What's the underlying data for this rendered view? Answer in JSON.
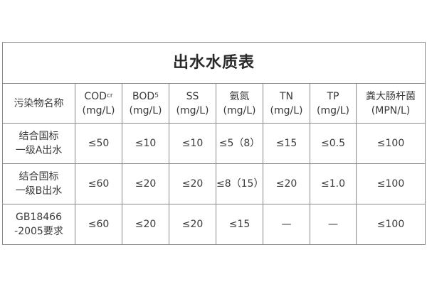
{
  "title": "出水水质表",
  "headers": [
    {
      "name": "污染物名称",
      "unit": ""
    },
    {
      "name": "COD",
      "sub": "cr",
      "unit": "(mg/L)"
    },
    {
      "name": "BOD",
      "sub": "5",
      "unit": "(mg/L)"
    },
    {
      "name": "SS",
      "unit": "(mg/L)"
    },
    {
      "name": "氨氮",
      "unit": "(mg/L)"
    },
    {
      "name": "TN",
      "unit": "(mg/L)"
    },
    {
      "name": "TP",
      "unit": "(mg/L)"
    },
    {
      "name": "粪大肠杆菌",
      "unit": "(MPN/L)"
    }
  ],
  "rows": [
    {
      "label1": "结合国标",
      "label2": "一级A出水",
      "values": [
        "≤50",
        "≤10",
        "≤10",
        "≤5（8）",
        "≤15",
        "≤0.5",
        "≤100"
      ]
    },
    {
      "label1": "结合国标",
      "label2": "一级B出水",
      "values": [
        "≤60",
        "≤20",
        "≤20",
        "≤8（15）",
        "≤20",
        "≤1.0",
        "≤100"
      ]
    },
    {
      "label1": "GB18466",
      "label2": "-2005要求",
      "values": [
        "≤60",
        "≤20",
        "≤20",
        "≤15",
        "—",
        "—",
        "≤100"
      ]
    }
  ]
}
